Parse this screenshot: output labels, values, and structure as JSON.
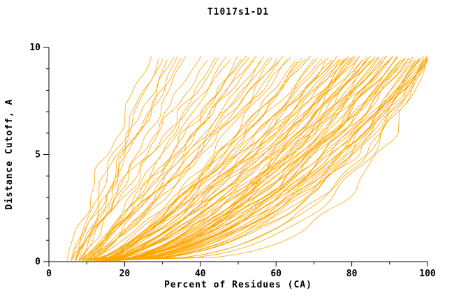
{
  "chart_data": {
    "type": "line",
    "title": "T1017s1-D1",
    "xlabel": "Percent of Residues (CA)",
    "ylabel": "Distance Cutoff, A",
    "xlim": [
      0,
      100
    ],
    "ylim": [
      0,
      10
    ],
    "x_ticks": [
      0,
      20,
      40,
      60,
      80,
      100
    ],
    "y_ticks": [
      0,
      5,
      10
    ],
    "x_minor_step": 10,
    "y_minor_step": 1,
    "grid": false,
    "legend": "none",
    "curve_color": "#FFA500",
    "axis_color": "#000000",
    "curve_y_start": 0.05,
    "curve_y_end": 9.62,
    "wiggle_amplitude": 1.0,
    "seed": 11,
    "series_format": "each curve = [percent_at_cutoff_0, percent_at_cutoff_10, shape_exponent]; x(t)=x0+(xtop-x0)*t^shape with t=cutoff/10; ~100 model accuracy curves",
    "curves": [
      [
        5,
        27,
        1.15
      ],
      [
        6,
        29,
        1.05
      ],
      [
        7,
        30,
        1.2
      ],
      [
        6,
        31,
        0.95
      ],
      [
        8,
        33,
        1.1
      ],
      [
        7,
        34,
        1.0
      ],
      [
        9,
        35,
        1.25
      ],
      [
        8,
        36,
        0.9
      ],
      [
        6,
        40,
        0.95
      ],
      [
        7,
        42,
        1.05
      ],
      [
        9,
        44,
        0.85
      ],
      [
        8,
        45,
        1.0
      ],
      [
        10,
        47,
        0.9
      ],
      [
        7,
        48,
        1.1
      ],
      [
        11,
        50,
        0.8
      ],
      [
        9,
        51,
        0.95
      ],
      [
        12,
        52,
        1.05
      ],
      [
        8,
        53,
        0.85
      ],
      [
        10,
        54,
        0.9
      ],
      [
        11,
        55,
        1.0
      ],
      [
        8,
        56,
        0.85
      ],
      [
        9,
        57,
        0.75
      ],
      [
        12,
        58,
        0.9
      ],
      [
        10,
        59,
        0.8
      ],
      [
        13,
        60,
        0.7
      ],
      [
        9,
        61,
        0.95
      ],
      [
        11,
        62,
        0.85
      ],
      [
        14,
        63,
        0.75
      ],
      [
        10,
        64,
        0.9
      ],
      [
        12,
        65,
        0.65
      ],
      [
        15,
        66,
        0.8
      ],
      [
        11,
        67,
        0.7
      ],
      [
        13,
        68,
        0.85
      ],
      [
        9,
        69,
        0.75
      ],
      [
        14,
        70,
        0.6
      ],
      [
        12,
        71,
        0.8
      ],
      [
        10,
        72,
        0.7
      ],
      [
        15,
        73,
        0.85
      ],
      [
        13,
        74,
        0.65
      ],
      [
        11,
        75,
        0.75
      ],
      [
        16,
        75,
        0.9
      ],
      [
        12,
        76,
        0.7
      ],
      [
        10,
        77,
        0.6
      ],
      [
        13,
        77,
        0.75
      ],
      [
        16,
        78,
        0.55
      ],
      [
        11,
        78,
        0.7
      ],
      [
        14,
        79,
        0.8
      ],
      [
        12,
        79,
        0.6
      ],
      [
        16,
        80,
        0.7
      ],
      [
        13,
        80,
        0.5
      ],
      [
        15,
        81,
        0.65
      ],
      [
        11,
        81,
        0.75
      ],
      [
        17,
        82,
        0.55
      ],
      [
        14,
        82,
        0.7
      ],
      [
        12,
        83,
        0.6
      ],
      [
        16,
        83,
        0.8
      ],
      [
        13,
        84,
        0.5
      ],
      [
        17,
        84,
        0.65
      ],
      [
        15,
        85,
        0.7
      ],
      [
        12,
        85,
        0.55
      ],
      [
        16,
        86,
        0.6
      ],
      [
        14,
        86,
        0.75
      ],
      [
        13,
        87,
        0.5
      ],
      [
        18,
        87,
        0.65
      ],
      [
        16,
        88,
        0.55
      ],
      [
        14,
        88,
        0.7
      ],
      [
        17,
        89,
        0.6
      ],
      [
        15,
        89,
        0.45
      ],
      [
        13,
        90,
        0.65
      ],
      [
        18,
        90,
        0.55
      ],
      [
        16,
        91,
        0.6
      ],
      [
        15,
        91,
        0.7
      ],
      [
        14,
        92,
        0.5
      ],
      [
        17,
        92,
        0.6
      ],
      [
        16,
        92,
        0.55
      ],
      [
        12,
        93,
        0.5
      ],
      [
        17,
        93,
        0.6
      ],
      [
        15,
        94,
        0.45
      ],
      [
        18,
        94,
        0.55
      ],
      [
        16,
        95,
        0.5
      ],
      [
        13,
        95,
        0.6
      ],
      [
        17,
        96,
        0.45
      ],
      [
        15,
        96,
        0.55
      ],
      [
        14,
        97,
        0.5
      ],
      [
        16,
        97,
        0.4
      ],
      [
        18,
        98,
        0.55
      ],
      [
        15,
        98,
        0.45
      ],
      [
        17,
        98,
        0.5
      ],
      [
        16,
        99,
        0.4
      ],
      [
        18,
        99,
        0.55
      ],
      [
        14,
        99,
        0.45
      ],
      [
        14,
        100,
        0.5
      ],
      [
        16,
        100,
        0.35
      ],
      [
        17,
        100,
        0.45
      ],
      [
        18,
        100,
        0.5
      ],
      [
        15,
        100,
        0.4
      ],
      [
        14,
        100,
        0.3
      ],
      [
        18,
        100,
        0.45
      ],
      [
        16,
        100,
        0.35
      ],
      [
        13,
        100,
        0.25
      ]
    ]
  }
}
